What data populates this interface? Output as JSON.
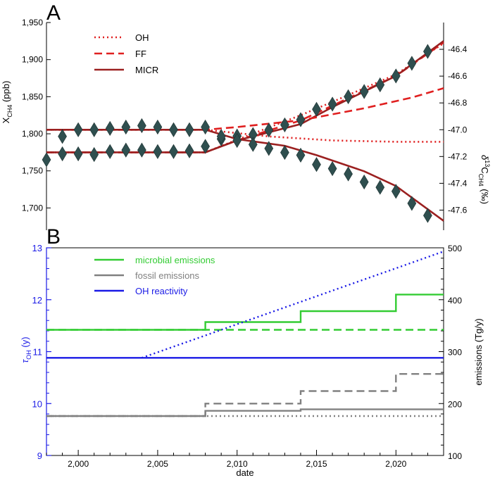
{
  "chart_data": [
    {
      "panel_label": "A",
      "type": "line",
      "xlim": [
        1998,
        2023
      ],
      "y_left": {
        "label_parts": [
          "X",
          "CH4",
          " (ppb)"
        ],
        "lim": [
          1670,
          1950
        ],
        "ticks": [
          1700,
          1750,
          1800,
          1850,
          1900,
          1950
        ],
        "tick_labels": [
          "1,700",
          "1,750",
          "1,800",
          "1,850",
          "1,900",
          "1,950"
        ]
      },
      "y_right": {
        "label_parts": [
          "δ",
          "13",
          "C",
          "CH4",
          " (‰)"
        ],
        "lim": [
          -47.75,
          -46.2
        ],
        "ticks": [
          -46.4,
          -46.6,
          -46.8,
          -47.0,
          -47.2,
          -47.4,
          -47.6
        ],
        "tick_labels": [
          "-46.4",
          "-46.6",
          "-46.8",
          "-47.0",
          "-47.2",
          "-47.4",
          "-47.6"
        ]
      },
      "legend": [
        "OH",
        "FF",
        "MICR"
      ],
      "series": [
        {
          "name": "OH",
          "axis": "left",
          "style": "dotted",
          "color": "#e02020",
          "x": [
            1998,
            2008,
            2010,
            2014,
            2016,
            2020,
            2023
          ],
          "y": [
            1775,
            1775,
            1792,
            1825,
            1843,
            1880,
            1922
          ]
        },
        {
          "name": "FF",
          "axis": "left",
          "style": "dashed",
          "color": "#e02020",
          "x": [
            1998,
            2008,
            2010,
            2014,
            2016,
            2020,
            2023
          ],
          "y": [
            1775,
            1775,
            1791,
            1818,
            1838,
            1878,
            1923
          ]
        },
        {
          "name": "MICR",
          "axis": "left",
          "style": "solid",
          "color": "#9b2020",
          "x": [
            1998,
            2008,
            2010,
            2014,
            2016,
            2020,
            2023
          ],
          "y": [
            1775,
            1775,
            1791,
            1813,
            1836,
            1878,
            1925
          ]
        },
        {
          "name": "OH",
          "axis": "right",
          "style": "dotted",
          "color": "#e02020",
          "x": [
            1998,
            2008,
            2012,
            2016,
            2020,
            2023
          ],
          "y": [
            -47.0,
            -47.0,
            -47.05,
            -47.08,
            -47.09,
            -47.09
          ]
        },
        {
          "name": "FF",
          "axis": "right",
          "style": "dashed",
          "color": "#e02020",
          "x": [
            1998,
            2008,
            2010,
            2014,
            2018,
            2021,
            2023
          ],
          "y": [
            -47.0,
            -47.0,
            -46.98,
            -46.93,
            -46.84,
            -46.76,
            -46.69
          ]
        },
        {
          "name": "MICR",
          "axis": "right",
          "style": "solid",
          "color": "#9b2020",
          "x": [
            1998,
            2008,
            2010,
            2013,
            2015,
            2018,
            2020,
            2023
          ],
          "y": [
            -47.0,
            -47.0,
            -47.07,
            -47.12,
            -47.19,
            -47.31,
            -47.42,
            -47.68
          ]
        }
      ],
      "observations": [
        {
          "name": "XCH4 observed",
          "axis": "left",
          "color": "#2f4f4f",
          "x": [
            1998,
            1999,
            2000,
            2001,
            2002,
            2003,
            2004,
            2005,
            2006,
            2007,
            2008,
            2009,
            2010,
            2011,
            2012,
            2013,
            2014,
            2015,
            2016,
            2017,
            2018,
            2019,
            2020,
            2021,
            2022
          ],
          "y": [
            1765,
            1773,
            1773,
            1772,
            1776,
            1778,
            1778,
            1776,
            1776,
            1777,
            1783,
            1793,
            1797,
            1799,
            1805,
            1812,
            1819,
            1833,
            1840,
            1850,
            1857,
            1866,
            1878,
            1895,
            1911
          ]
        },
        {
          "name": "d13C observed",
          "axis": "right",
          "color": "#2f4f4f",
          "x": [
            1999,
            2000,
            2001,
            2002,
            2003,
            2004,
            2005,
            2006,
            2007,
            2008,
            2009,
            2010,
            2011,
            2012,
            2013,
            2014,
            2015,
            2016,
            2017,
            2018,
            2019,
            2020,
            2021,
            2022
          ],
          "y": [
            -47.05,
            -47.0,
            -47.0,
            -46.99,
            -46.98,
            -46.97,
            -46.98,
            -47.0,
            -47.0,
            -46.98,
            -47.05,
            -47.08,
            -47.11,
            -47.14,
            -47.17,
            -47.19,
            -47.26,
            -47.29,
            -47.33,
            -47.39,
            -47.43,
            -47.46,
            -47.55,
            -47.64
          ]
        }
      ]
    },
    {
      "panel_label": "B",
      "type": "line",
      "xlim": [
        1998,
        2023
      ],
      "x_axis": {
        "label": "date",
        "ticks": [
          2000,
          2005,
          2010,
          2015,
          2020
        ],
        "tick_labels": [
          "2,000",
          "2,005",
          "2,010",
          "2,015",
          "2,020"
        ]
      },
      "y_left": {
        "label_parts": [
          "τ",
          "OH",
          " (y)"
        ],
        "color": "#1a1ae6",
        "lim": [
          9,
          13
        ],
        "ticks": [
          9,
          10,
          11,
          12,
          13
        ],
        "tick_labels": [
          "9",
          "10",
          "11",
          "12",
          "13"
        ]
      },
      "y_right": {
        "label": "emissions (Tg/y)",
        "lim": [
          100,
          500
        ],
        "ticks": [
          100,
          200,
          300,
          400,
          500
        ],
        "tick_labels": [
          "100",
          "200",
          "300",
          "400",
          "500"
        ]
      },
      "legend": [
        {
          "label": "microbial emissions",
          "color": "#33cc33"
        },
        {
          "label": "fossil emissions",
          "color": "#808080"
        },
        {
          "label": "OH reactivity",
          "color": "#1a1ae6"
        }
      ],
      "series": [
        {
          "name": "microbial emissions",
          "axis": "right",
          "style": "solid",
          "color": "#33cc33",
          "x": [
            1998,
            2008,
            2008,
            2014,
            2014,
            2020,
            2020,
            2023
          ],
          "y": [
            342,
            342,
            357,
            357,
            378,
            378,
            410,
            410
          ]
        },
        {
          "name": "microbial emissions",
          "axis": "right",
          "style": "dashed",
          "color": "#33cc33",
          "x": [
            1998,
            2023
          ],
          "y": [
            342,
            342
          ]
        },
        {
          "name": "fossil emissions",
          "axis": "right",
          "style": "solid",
          "color": "#808080",
          "x": [
            1998,
            2008,
            2008,
            2014,
            2014,
            2023
          ],
          "y": [
            176,
            176,
            186,
            186,
            189,
            189
          ]
        },
        {
          "name": "fossil emissions",
          "axis": "right",
          "style": "dashed",
          "color": "#808080",
          "x": [
            1998,
            2008,
            2008,
            2014,
            2014,
            2020,
            2020,
            2023
          ],
          "y": [
            176,
            176,
            200,
            200,
            224,
            224,
            257,
            257
          ]
        },
        {
          "name": "fossil emissions",
          "axis": "right",
          "style": "dotted",
          "color": "#808080",
          "x": [
            1998,
            2023
          ],
          "y": [
            176,
            176
          ]
        },
        {
          "name": "OH reactivity",
          "axis": "left",
          "style": "solid",
          "color": "#1a1ae6",
          "x": [
            1998,
            2023
          ],
          "y": [
            10.88,
            10.88
          ]
        },
        {
          "name": "OH reactivity",
          "axis": "left",
          "style": "dotted",
          "color": "#1a1ae6",
          "x": [
            2004,
            2023
          ],
          "y": [
            10.88,
            12.93
          ]
        }
      ]
    }
  ]
}
